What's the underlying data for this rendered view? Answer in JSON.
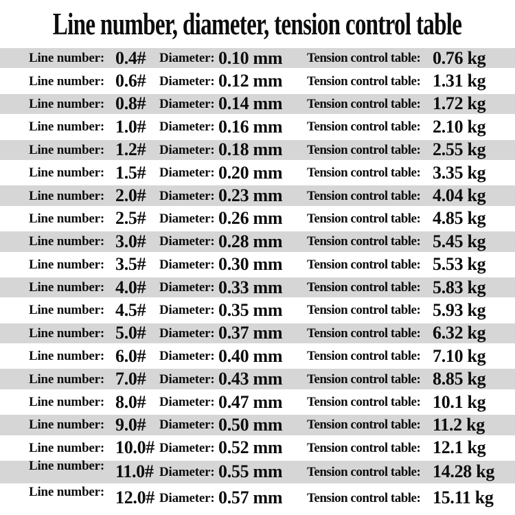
{
  "title": "Line number, diameter, tension control table",
  "labels": {
    "line_number": "Line number:",
    "diameter": "Diameter:",
    "tension": "Tension control table:"
  },
  "colors": {
    "stripe": "#d6d6d6",
    "text": "#0d0d0d",
    "background": "#ffffff"
  },
  "chart_data": {
    "type": "table",
    "title": "Line number, diameter, tension control table",
    "columns": [
      "Line number:",
      "Diameter:",
      "Tension control table:"
    ],
    "rows": [
      [
        "0.4#",
        "0.10 mm",
        "0.76 kg"
      ],
      [
        "0.6#",
        "0.12 mm",
        "1.31 kg"
      ],
      [
        "0.8#",
        "0.14 mm",
        "1.72 kg"
      ],
      [
        "1.0#",
        "0.16 mm",
        "2.10 kg"
      ],
      [
        "1.2#",
        "0.18 mm",
        "2.55 kg"
      ],
      [
        "1.5#",
        "0.20 mm",
        "3.35 kg"
      ],
      [
        "2.0#",
        "0.23 mm",
        "4.04 kg"
      ],
      [
        "2.5#",
        "0.26 mm",
        "4.85 kg"
      ],
      [
        "3.0#",
        "0.28 mm",
        "5.45 kg"
      ],
      [
        "3.5#",
        "0.30 mm",
        "5.53 kg"
      ],
      [
        "4.0#",
        "0.33 mm",
        "5.83 kg"
      ],
      [
        "4.5#",
        "0.35 mm",
        "5.93 kg"
      ],
      [
        "5.0#",
        "0.37 mm",
        "6.32 kg"
      ],
      [
        "6.0#",
        "0.40 mm",
        "7.10 kg"
      ],
      [
        "7.0#",
        "0.43 mm",
        "8.85 kg"
      ],
      [
        "8.0#",
        "0.47 mm",
        "10.1 kg"
      ],
      [
        "9.0#",
        "0.50 mm",
        "11.2 kg"
      ],
      [
        "10.0#",
        "0.52 mm",
        "12.1 kg"
      ],
      [
        "11.0#",
        "0.55 mm",
        "14.28 kg"
      ],
      [
        "12.0#",
        "0.57 mm",
        "15.11 kg"
      ]
    ],
    "layout": {
      "stripe_pattern": "alternating gray/white starting gray",
      "grid": false,
      "units": {
        "diameter": "mm",
        "tension": "kg"
      }
    }
  }
}
